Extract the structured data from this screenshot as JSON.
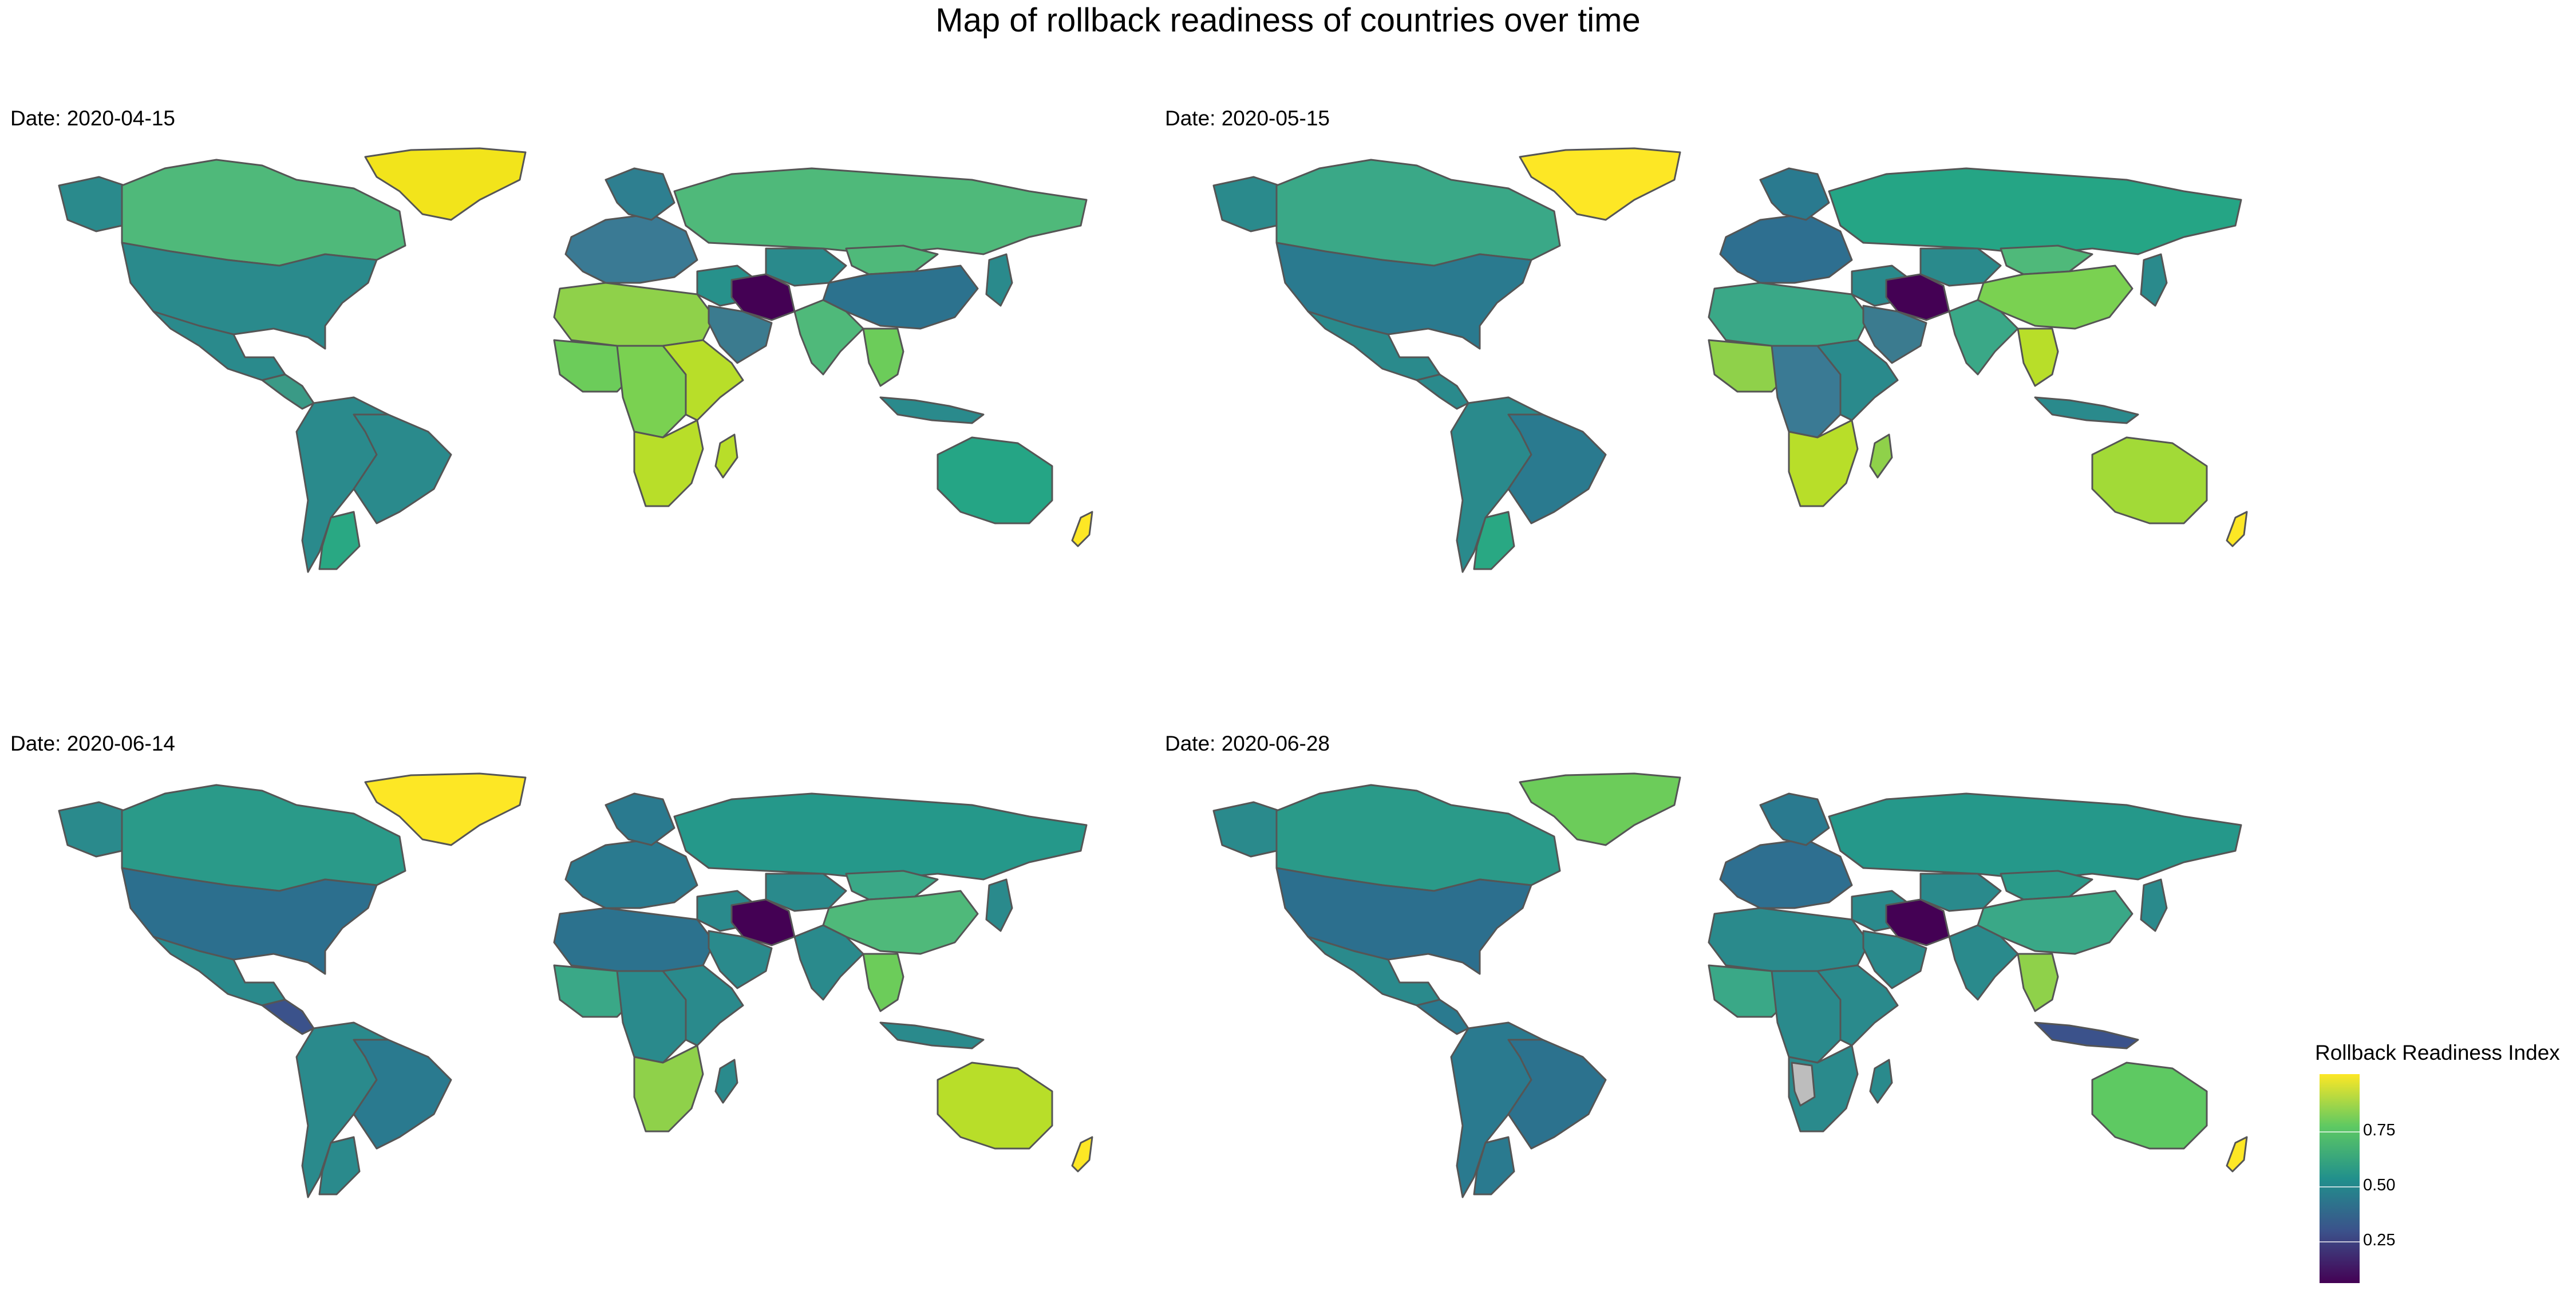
{
  "title": "Map of rollback readiness of countries over time",
  "panels": [
    {
      "label": "Date: 2020-04-15",
      "fills": {
        "canada": "#4fb97a",
        "greenland": "#f2e41b",
        "usa": "#2a8a8c",
        "alaska": "#2a8a8c",
        "mexico": "#2a8a8c",
        "central_america": "#3a9a86",
        "south_america": "#2a8a8c",
        "brazil": "#2a8a8c",
        "argentina": "#29a883",
        "europe": "#3a7a94",
        "scandinavia": "#2e7f90",
        "russia": "#4fb97a",
        "north_africa": "#8fd14a",
        "west_africa": "#6ccc5a",
        "central_africa": "#7ad151",
        "east_africa": "#b8de29",
        "southern_africa": "#b8de29",
        "madagascar": "#b8de29",
        "middle_east": "#27918b",
        "iran": "#440154",
        "arabia": "#3b7b8f",
        "central_asia": "#2a8a8c",
        "india": "#4fb97a",
        "china": "#2c728e",
        "mongolia": "#4fb97a",
        "se_asia": "#6ccc5a",
        "japan": "#2a8a8c",
        "indonesia": "#2a8a8c",
        "australia": "#25a585",
        "new_zealand": "#fde725"
      }
    },
    {
      "label": "Date: 2020-05-15",
      "fills": {
        "canada": "#3aa887",
        "greenland": "#fde725",
        "usa": "#2a7a8f",
        "alaska": "#2a8a8c",
        "mexico": "#2a8a8c",
        "central_america": "#2a8a8c",
        "south_america": "#2a8a8c",
        "brazil": "#2a7a8f",
        "argentina": "#29a883",
        "europe": "#2e6f90",
        "scandinavia": "#2a7a8f",
        "russia": "#25a585",
        "north_africa": "#3aa887",
        "west_africa": "#8fd14a",
        "central_africa": "#3a7a94",
        "east_africa": "#2a8a8c",
        "southern_africa": "#b8de29",
        "madagascar": "#8fd14a",
        "middle_east": "#2a8a8c",
        "iran": "#440154",
        "arabia": "#3b7b8f",
        "central_asia": "#2a8a8c",
        "india": "#3aa887",
        "china": "#7ad151",
        "mongolia": "#4fb97a",
        "se_asia": "#b8de29",
        "japan": "#2a8a8c",
        "indonesia": "#2a8a8c",
        "australia": "#a2da37",
        "new_zealand": "#fde725"
      }
    },
    {
      "label": "Date: 2020-06-14",
      "fills": {
        "canada": "#2a9a89",
        "greenland": "#fde725",
        "usa": "#2c6f8e",
        "alaska": "#2a8a8c",
        "mexico": "#2a8a8c",
        "central_america": "#3b528b",
        "south_america": "#2a8a8c",
        "brazil": "#2a7a8f",
        "argentina": "#2a8a8c",
        "europe": "#2a7a8f",
        "scandinavia": "#2a7a8f",
        "russia": "#25988a",
        "north_africa": "#2c728e",
        "west_africa": "#3aa887",
        "central_africa": "#2a8a8c",
        "east_africa": "#2a8a8c",
        "southern_africa": "#8fd14a",
        "madagascar": "#2a8a8c",
        "middle_east": "#2a8a8c",
        "iran": "#440154",
        "arabia": "#2a8a8c",
        "central_asia": "#2a8a8c",
        "india": "#2a8a8c",
        "china": "#4fb97a",
        "mongolia": "#3aa887",
        "se_asia": "#6ccc5a",
        "japan": "#2a8a8c",
        "indonesia": "#2a8a8c",
        "australia": "#b8de29",
        "new_zealand": "#fde725"
      }
    },
    {
      "label": "Date: 2020-06-28",
      "fills": {
        "canada": "#2a9a89",
        "greenland": "#6ccc5a",
        "usa": "#2c6f8e",
        "alaska": "#2a8a8c",
        "mexico": "#2a8a8c",
        "central_america": "#2a7a8f",
        "south_america": "#2a7a8f",
        "brazil": "#2c728e",
        "argentina": "#2a7a8f",
        "europe": "#2e6f90",
        "scandinavia": "#2a7a8f",
        "russia": "#25988a",
        "north_africa": "#2a8a8c",
        "west_africa": "#3aa887",
        "central_africa": "#2a8a8c",
        "east_africa": "#2a8a8c",
        "southern_africa": "#2a8a8c",
        "madagascar": "#2a8a8c",
        "middle_east": "#2a8a8c",
        "iran": "#440154",
        "arabia": "#2a8a8c",
        "central_asia": "#2a8a8c",
        "india": "#2a8a8c",
        "china": "#3aa887",
        "mongolia": "#2a9a89",
        "se_asia": "#8fd14a",
        "japan": "#2a8a8c",
        "indonesia": "#3b528b",
        "australia": "#5ec962",
        "new_zealand": "#fde725",
        "namibia": "#bdbdbd"
      }
    }
  ],
  "legend": {
    "title": "Rollback Readiness Index",
    "ticks": [
      "0.75",
      "0.50",
      "0.25"
    ],
    "tick_values": [
      0.75,
      0.5,
      0.25
    ],
    "range": [
      0.08,
      0.96
    ],
    "colors": [
      "#440154",
      "#3b528b",
      "#21908c",
      "#5ec962",
      "#fde725"
    ]
  }
}
